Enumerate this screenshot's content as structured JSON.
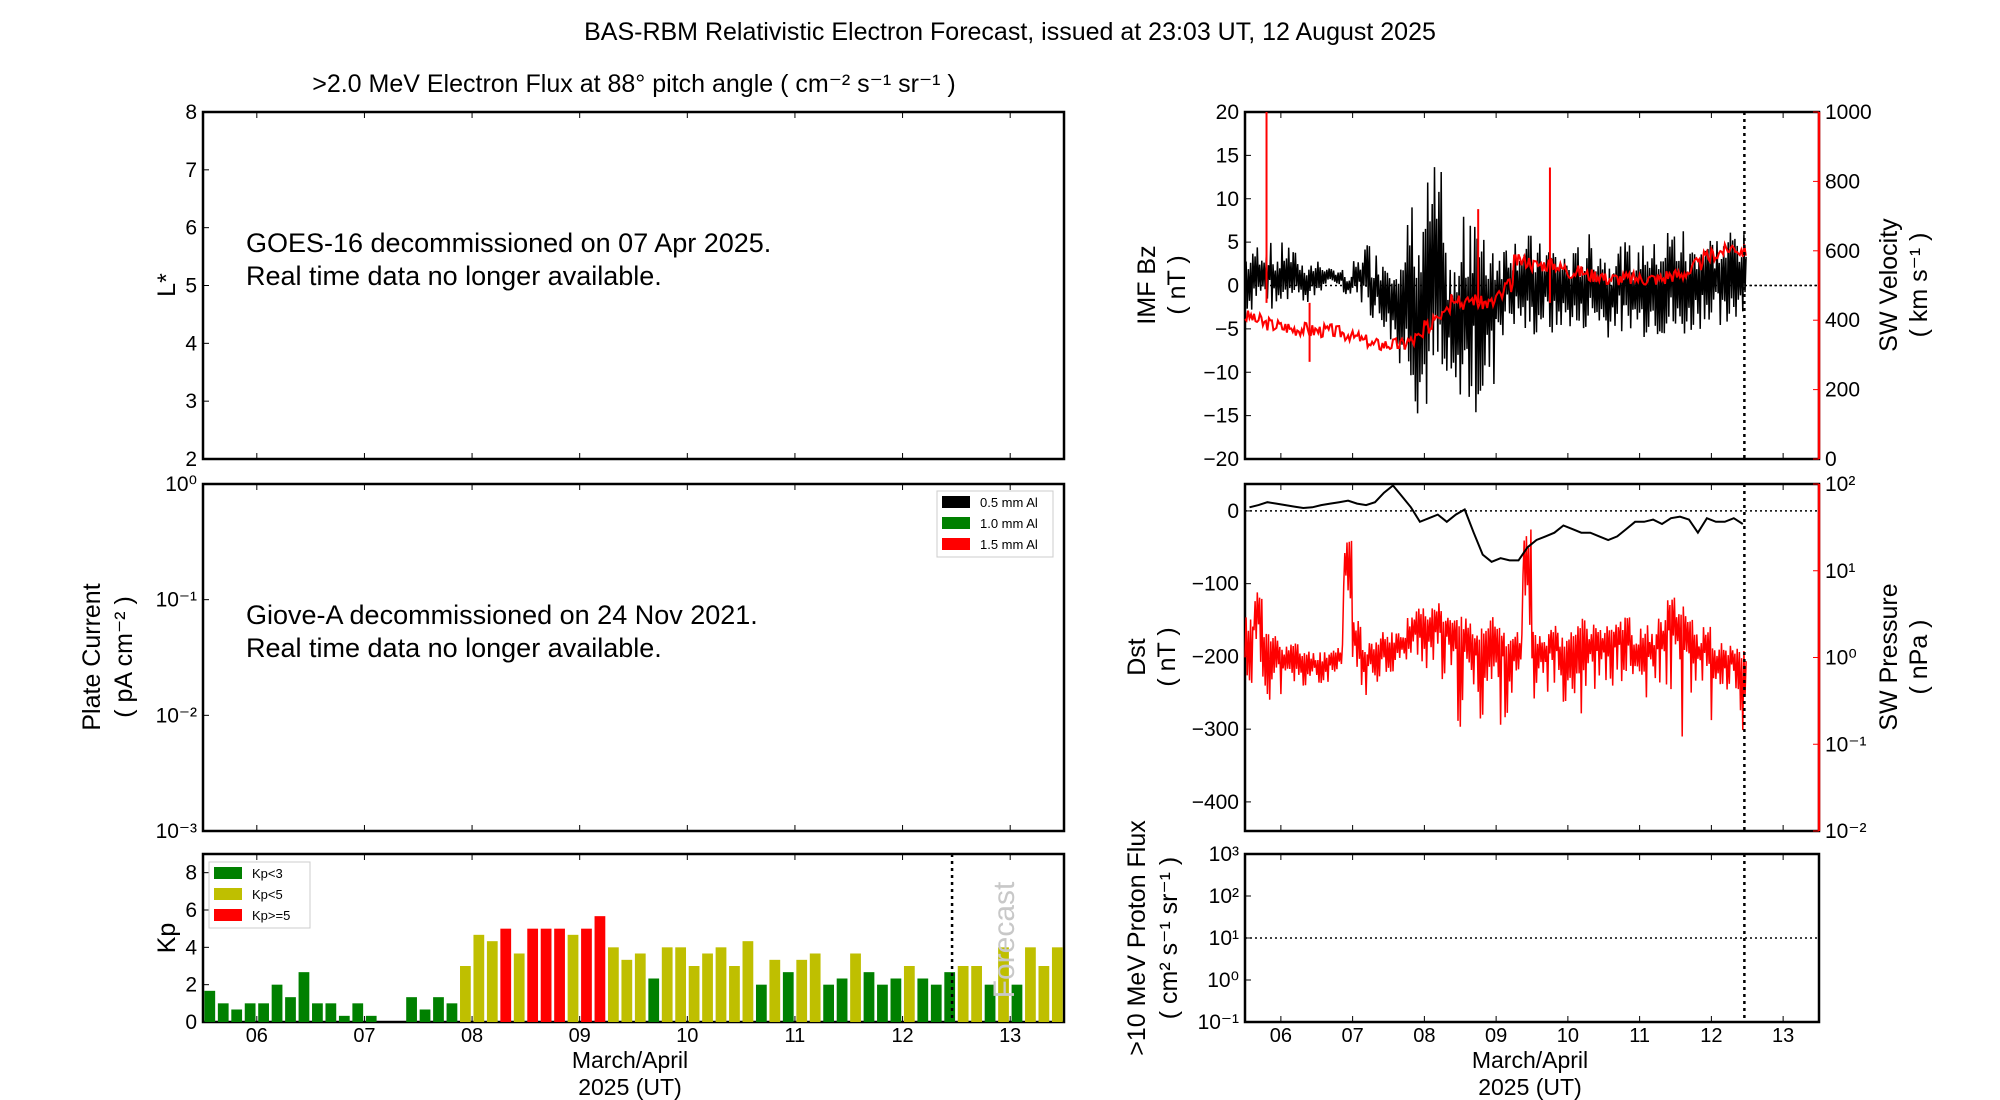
{
  "title": "BAS-RBM Relativistic Electron Forecast, issued at 23:03 UT, 12 August 2025",
  "colors": {
    "kp_low": "#008000",
    "kp_mid": "#bfbf00",
    "kp_high": "#ff0000",
    "red": "#ff0000",
    "black": "#000000",
    "forecast_text": "#c8c8c8"
  },
  "electron_panel": {
    "title": ">2.0 MeV Electron Flux at 88° pitch angle ( cm⁻² s⁻¹ sr⁻¹ )",
    "ylabel": "L*",
    "message_line1": "GOES-16 decommissioned on 07 Apr 2025.",
    "message_line2": "Real time data no longer available."
  },
  "plate_panel": {
    "ylabel1": "Plate Current",
    "ylabel2": "( pA cm⁻² )",
    "message_line1": "Giove-A decommissioned on 24 Nov 2021.",
    "message_line2": "Real time data no longer available.",
    "legend": [
      "0.5 mm Al",
      "1.0 mm Al",
      "1.5 mm Al"
    ]
  },
  "kp_panel": {
    "ylabel": "Kp",
    "legend": [
      "Kp<3",
      "Kp<5",
      "Kp>=5"
    ],
    "forecast_label": "Forecast"
  },
  "xaxis": {
    "label1": "March/April",
    "label2": "2025 (UT)",
    "days": [
      "06",
      "07",
      "08",
      "09",
      "10",
      "11",
      "12",
      "13"
    ]
  },
  "right_labels": {
    "bz1": "IMF Bz",
    "bz2": "( nT )",
    "vel1": "SW Velocity",
    "vel2": "( km s⁻¹ )",
    "dst1": "Dst",
    "dst2": "( nT )",
    "pres1": "SW Pressure",
    "pres2": "( nPa )",
    "proton1": ">10 MeV Proton Flux",
    "proton2": "( cm² s⁻¹ sr⁻¹ )"
  },
  "chart_data": [
    {
      "type": "line",
      "name": "electron_flux",
      "ylabel": "L*",
      "ylim": [
        2,
        8
      ],
      "yticks": [
        "2",
        "3",
        "4",
        "5",
        "6",
        "7",
        "8"
      ],
      "xlim": [
        5.5,
        13.5
      ]
    },
    {
      "type": "line",
      "name": "plate_current",
      "yscale": "log",
      "ylim": [
        0.001,
        1
      ],
      "yticks": [
        "10⁻³",
        "10⁻²",
        "10⁻¹",
        "10⁰"
      ]
    },
    {
      "type": "bar",
      "name": "kp",
      "ylabel": "Kp",
      "ylim": [
        0,
        9
      ],
      "yticks": [
        "0",
        "2",
        "4",
        "6",
        "8"
      ],
      "x_start": 5.5,
      "bin_hours": 3,
      "forecast_start": 12.46,
      "values": [
        1.67,
        1,
        0.67,
        1,
        1,
        2,
        1.33,
        2.67,
        1,
        1,
        0.33,
        1,
        0.33,
        0,
        0,
        1.33,
        0.67,
        1.33,
        1,
        3,
        4.67,
        4.33,
        5,
        3.67,
        5,
        5,
        5,
        4.67,
        5,
        5.67,
        4,
        3.33,
        3.67,
        2.33,
        4,
        4,
        3,
        3.67,
        4,
        3,
        4.33,
        2,
        3.33,
        2.67,
        3.33,
        3.67,
        2,
        2.33,
        3.67,
        2.67,
        2,
        2.33,
        3,
        2.33,
        2,
        2.67,
        3,
        3,
        2,
        4,
        2,
        4,
        3,
        4
      ]
    },
    {
      "type": "line",
      "name": "imf_bz",
      "ylabel": "IMF Bz (nT)",
      "ylim": [
        -20,
        20
      ],
      "yticks": [
        "−20",
        "−15",
        "−10",
        "−5",
        "0",
        "5",
        "10",
        "15",
        "20"
      ],
      "x_start": 5.5,
      "bin_hours": 3,
      "min": [
        -3,
        -2,
        -2,
        -3,
        -2,
        -1,
        -2,
        -2,
        -1,
        0,
        0,
        -1,
        -1,
        -2,
        -4,
        -5,
        -7,
        -9,
        -11,
        -15,
        -15,
        -13,
        -13,
        -14,
        -13,
        -15,
        -14,
        -12,
        -6,
        -5,
        -5,
        -6,
        -6,
        -5,
        -6,
        -5,
        -5,
        -6,
        -5,
        -5,
        -6,
        -5,
        -6,
        -5,
        -6,
        -5,
        -6,
        -6,
        -7,
        -6,
        -5,
        -4,
        -5,
        -6,
        -4,
        -3
      ],
      "max": [
        4,
        5,
        5,
        4,
        5,
        4,
        3,
        3,
        3,
        2,
        2,
        1,
        3,
        5,
        4,
        4,
        5,
        3,
        10,
        7,
        13,
        14,
        5,
        3,
        8,
        12,
        6,
        7,
        5,
        6,
        6,
        6,
        5,
        5,
        5,
        4,
        4,
        5,
        6,
        5,
        4,
        5,
        5,
        4,
        6,
        5,
        6,
        7,
        7,
        5,
        6,
        6,
        6,
        6,
        7,
        6
      ]
    },
    {
      "type": "line",
      "name": "sw_velocity",
      "ylabel": "SW Velocity (km s⁻¹)",
      "ylim": [
        0,
        1000
      ],
      "yticks": [
        "0",
        "200",
        "400",
        "600",
        "800",
        "1000"
      ],
      "x_start": 5.5,
      "bin_hours": 3,
      "values": [
        410,
        400,
        390,
        385,
        380,
        375,
        375,
        370,
        370,
        370,
        365,
        360,
        350,
        340,
        330,
        330,
        330,
        330,
        340,
        350,
        380,
        420,
        440,
        470,
        450,
        460,
        450,
        450,
        470,
        500,
        570,
        570,
        560,
        560,
        560,
        550,
        540,
        540,
        530,
        530,
        520,
        520,
        520,
        520,
        520,
        520,
        520,
        530,
        530,
        540,
        560,
        580,
        590,
        600,
        610,
        600
      ],
      "spikes": [
        [
          5.8,
          1000
        ],
        [
          8.75,
          720
        ],
        [
          9.75,
          840
        ],
        [
          6.4,
          280
        ]
      ]
    },
    {
      "type": "line",
      "name": "dst",
      "ylabel": "Dst (nT)",
      "ylim": [
        -440,
        37
      ],
      "yticks": [
        "−400",
        "−300",
        "−200",
        "−100",
        "0"
      ],
      "x_start": 5.5,
      "bin_hours": 3,
      "values": [
        5,
        8,
        12,
        10,
        8,
        6,
        4,
        5,
        8,
        10,
        12,
        14,
        10,
        8,
        12,
        25,
        35,
        20,
        5,
        -15,
        -10,
        -5,
        -15,
        -5,
        2,
        -30,
        -60,
        -70,
        -65,
        -68,
        -68,
        -50,
        -40,
        -35,
        -30,
        -20,
        -25,
        -30,
        -30,
        -35,
        -40,
        -35,
        -25,
        -15,
        -15,
        -12,
        -18,
        -10,
        -8,
        -12,
        -30,
        -10,
        -15,
        -15,
        -10,
        -18
      ]
    },
    {
      "type": "line",
      "name": "sw_pressure",
      "ylabel": "SW Pressure (nPa)",
      "yscale": "log",
      "ylim": [
        0.01,
        100
      ],
      "yticks": [
        "10⁻²",
        "10⁻¹",
        "10⁰",
        "10¹",
        "10²"
      ],
      "x_start": 5.5,
      "bin_hours": 3,
      "min": [
        0.3,
        0.2,
        0.3,
        0.25,
        0.35,
        0.4,
        0.4,
        0.5,
        0.4,
        0.5,
        0.5,
        0.4,
        0.4,
        0.35,
        0.5,
        0.6,
        0.6,
        0.8,
        0.8,
        0.8,
        0.6,
        0.15,
        0.3,
        0.15,
        0.1,
        0.2,
        0.1,
        0.02,
        0.1,
        0.2,
        0.3,
        0.05,
        0.3,
        0.4,
        0.4,
        0.3,
        0.3,
        0.1,
        0.3,
        0.4,
        0.3,
        0.4,
        0.4,
        0.4,
        0.15,
        0.4,
        0.4,
        0.4,
        0.07,
        0.3,
        0.3,
        0.4,
        0.15,
        0.4,
        0.4,
        0.06
      ],
      "max": [
        3,
        6,
        2,
        2,
        1.5,
        1.5,
        1.3,
        1.2,
        1.2,
        1.3,
        1.5,
        25,
        3,
        1.5,
        1.5,
        2,
        2,
        2,
        3,
        4,
        4,
        5,
        4,
        3,
        3,
        2.5,
        2.5,
        3,
        2.5,
        2,
        2,
        30,
        2,
        2,
        2.5,
        2,
        2,
        3,
        2.5,
        2.5,
        2.5,
        3,
        3,
        2,
        2.5,
        2,
        3,
        5,
        4,
        3,
        2,
        2.5,
        1.5,
        1.5,
        1.5,
        1.2
      ]
    },
    {
      "type": "line",
      "name": "proton_flux",
      "yscale": "log",
      "ylim": [
        0.1,
        1000
      ],
      "yticks": [
        "10⁻¹",
        "10⁰",
        "10¹",
        "10²",
        "10³"
      ],
      "threshold": 10
    }
  ]
}
